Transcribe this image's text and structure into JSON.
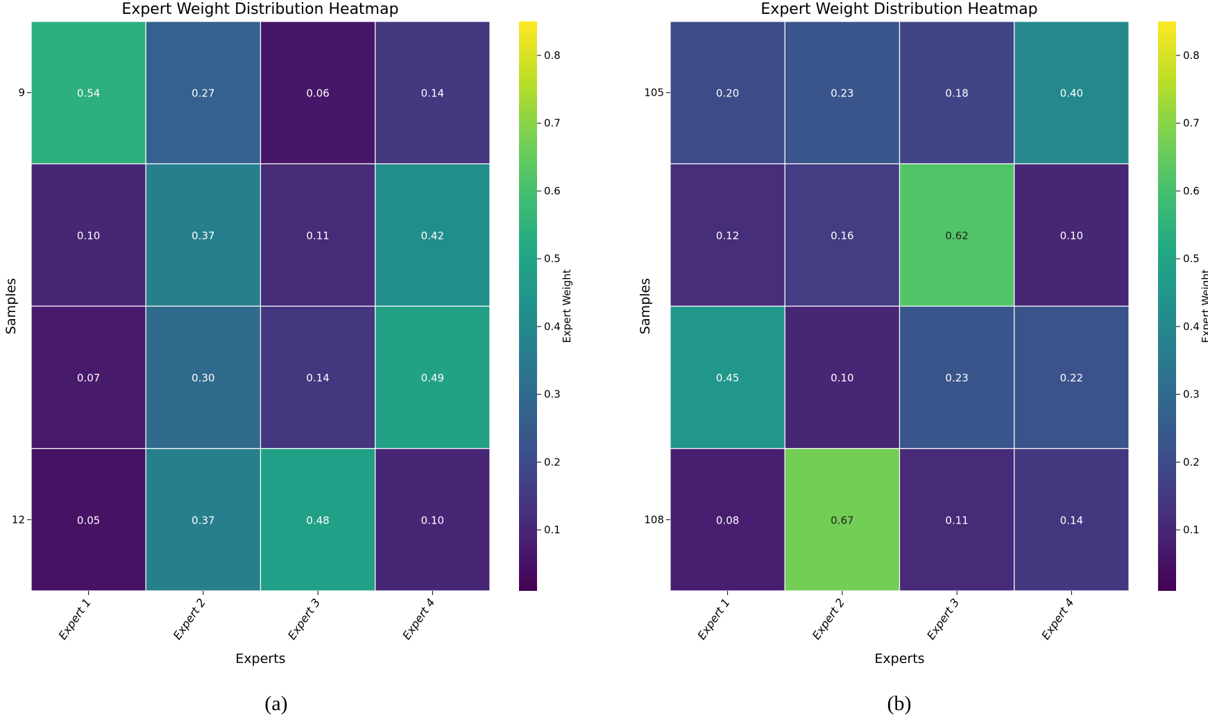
{
  "chart_data": [
    {
      "type": "heatmap",
      "panel": "(a)",
      "title": "Expert Weight Distribution Heatmap",
      "xlabel": "Experts",
      "ylabel": "Samples",
      "x_categories": [
        "Expert 1",
        "Expert 2",
        "Expert 3",
        "Expert 4"
      ],
      "y_tick_labels": [
        "9",
        "",
        "",
        "12"
      ],
      "values": [
        [
          0.54,
          0.27,
          0.06,
          0.14
        ],
        [
          0.1,
          0.37,
          0.11,
          0.42
        ],
        [
          0.07,
          0.3,
          0.14,
          0.49
        ],
        [
          0.05,
          0.37,
          0.48,
          0.1
        ]
      ],
      "colorbar": {
        "label": "Expert Weight",
        "colormap": "viridis",
        "range": [
          0.01,
          0.85
        ],
        "ticks": [
          0.1,
          0.2,
          0.3,
          0.4,
          0.5,
          0.6,
          0.7,
          0.8
        ],
        "tick_labels": [
          "0.1",
          "0.2",
          "0.3",
          "0.4",
          "0.5",
          "0.6",
          "0.7",
          "0.8"
        ]
      }
    },
    {
      "type": "heatmap",
      "panel": "(b)",
      "title": "Expert Weight Distribution Heatmap",
      "xlabel": "Experts",
      "ylabel": "Samples",
      "x_categories": [
        "Expert 1",
        "Expert 2",
        "Expert 3",
        "Expert 4"
      ],
      "y_tick_labels": [
        "105",
        "",
        "",
        "108"
      ],
      "values": [
        [
          0.2,
          0.23,
          0.18,
          0.4
        ],
        [
          0.12,
          0.16,
          0.62,
          0.1
        ],
        [
          0.45,
          0.1,
          0.23,
          0.22
        ],
        [
          0.08,
          0.67,
          0.11,
          0.14
        ]
      ],
      "colorbar": {
        "label": "Expert Weight",
        "colormap": "viridis",
        "range": [
          0.01,
          0.85
        ],
        "ticks": [
          0.1,
          0.2,
          0.3,
          0.4,
          0.5,
          0.6,
          0.7,
          0.8
        ],
        "tick_labels": [
          "0.1",
          "0.2",
          "0.3",
          "0.4",
          "0.5",
          "0.6",
          "0.7",
          "0.8"
        ]
      }
    }
  ],
  "captions": [
    "(a)",
    "(b)"
  ],
  "colors": {
    "cell_border": "#ffffff",
    "light_text": "#ffffff",
    "dark_text": "#222222",
    "frame": "#000000"
  }
}
